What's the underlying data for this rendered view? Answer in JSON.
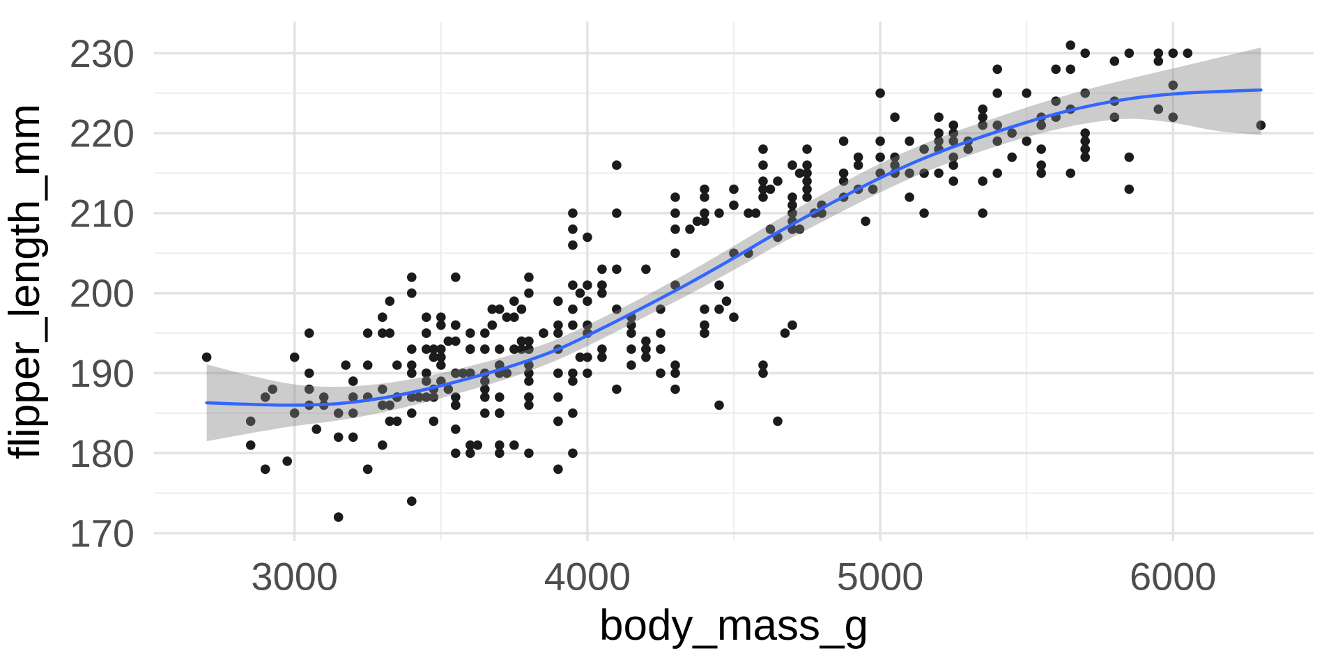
{
  "chart_data": {
    "type": "scatter",
    "title": "",
    "xlabel": "body_mass_g",
    "ylabel": "flipper_length_mm",
    "xlim": [
      2520,
      6480
    ],
    "ylim": [
      169.05,
      233.95
    ],
    "x_major_ticks": [
      3000,
      4000,
      5000,
      6000
    ],
    "x_minor_ticks": [
      3500,
      4500,
      5500
    ],
    "y_major_ticks": [
      170,
      180,
      190,
      200,
      210,
      220,
      230
    ],
    "y_minor_ticks": [
      175,
      185,
      195,
      205,
      215,
      225
    ],
    "grid": true,
    "legend": false,
    "colors": {
      "point": "#1B1B1B",
      "smooth_line": "#3366FF",
      "ribbon_fill": "#808080",
      "ribbon_alpha": 0.4,
      "grid_major": "#E3E3E3",
      "grid_minor": "#EDEDED",
      "tick_label": "#4D4D4D",
      "axis_title": "#000000",
      "background": "#FFFFFF"
    },
    "points_format": "[body_mass_g, flipper_length_mm]",
    "points": [
      [
        3750,
        181
      ],
      [
        3800,
        186
      ],
      [
        3250,
        195
      ],
      [
        3450,
        193
      ],
      [
        3650,
        190
      ],
      [
        3625,
        181
      ],
      [
        4675,
        195
      ],
      [
        3475,
        193
      ],
      [
        4250,
        190
      ],
      [
        3300,
        186
      ],
      [
        3700,
        180
      ],
      [
        3200,
        182
      ],
      [
        3800,
        191
      ],
      [
        4400,
        198
      ],
      [
        3700,
        185
      ],
      [
        3450,
        195
      ],
      [
        4500,
        197
      ],
      [
        3325,
        184
      ],
      [
        4200,
        194
      ],
      [
        3400,
        174
      ],
      [
        3600,
        180
      ],
      [
        3800,
        189
      ],
      [
        3950,
        185
      ],
      [
        3800,
        180
      ],
      [
        3800,
        187
      ],
      [
        3550,
        183
      ],
      [
        3200,
        187
      ],
      [
        3150,
        172
      ],
      [
        3950,
        180
      ],
      [
        3250,
        178
      ],
      [
        3900,
        178
      ],
      [
        3300,
        188
      ],
      [
        3900,
        184
      ],
      [
        3325,
        195
      ],
      [
        4150,
        196
      ],
      [
        3950,
        190
      ],
      [
        3550,
        180
      ],
      [
        3300,
        181
      ],
      [
        4650,
        184
      ],
      [
        3150,
        182
      ],
      [
        3900,
        195
      ],
      [
        3100,
        186
      ],
      [
        4400,
        196
      ],
      [
        3000,
        185
      ],
      [
        4600,
        190
      ],
      [
        3075,
        183
      ],
      [
        2975,
        179
      ],
      [
        3450,
        190
      ],
      [
        4150,
        191
      ],
      [
        3500,
        192
      ],
      [
        4300,
        205
      ],
      [
        3450,
        187
      ],
      [
        4050,
        193
      ],
      [
        2900,
        187
      ],
      [
        3700,
        191
      ],
      [
        3550,
        186
      ],
      [
        4450,
        186
      ],
      [
        3550,
        190
      ],
      [
        4300,
        188
      ],
      [
        3150,
        185
      ],
      [
        4050,
        200
      ],
      [
        3200,
        189
      ],
      [
        4700,
        196
      ],
      [
        3800,
        187
      ],
      [
        4200,
        193
      ],
      [
        3350,
        191
      ],
      [
        3550,
        194
      ],
      [
        3800,
        190
      ],
      [
        3500,
        189
      ],
      [
        3950,
        189
      ],
      [
        3600,
        190
      ],
      [
        3550,
        202
      ],
      [
        3050,
        190
      ],
      [
        4450,
        198
      ],
      [
        3600,
        190
      ],
      [
        3900,
        190
      ],
      [
        3550,
        196
      ],
      [
        4150,
        197
      ],
      [
        3700,
        190
      ],
      [
        4250,
        195
      ],
      [
        3700,
        191
      ],
      [
        3900,
        184
      ],
      [
        3550,
        187
      ],
      [
        4000,
        195
      ],
      [
        3200,
        189
      ],
      [
        4600,
        191
      ],
      [
        4200,
        193
      ],
      [
        4475,
        199
      ],
      [
        3425,
        187
      ],
      [
        3900,
        190
      ],
      [
        3175,
        191
      ],
      [
        3975,
        200
      ],
      [
        3400,
        185
      ],
      [
        4250,
        193
      ],
      [
        3400,
        193
      ],
      [
        3475,
        187
      ],
      [
        3050,
        188
      ],
      [
        3725,
        190
      ],
      [
        3000,
        192
      ],
      [
        3650,
        185
      ],
      [
        4250,
        190
      ],
      [
        3475,
        184
      ],
      [
        3450,
        195
      ],
      [
        3750,
        193
      ],
      [
        3700,
        187
      ],
      [
        4000,
        201
      ],
      [
        3050,
        186
      ],
      [
        4000,
        199
      ],
      [
        3750,
        199
      ],
      [
        4400,
        195
      ],
      [
        3550,
        186
      ],
      [
        4400,
        196
      ],
      [
        3100,
        187
      ],
      [
        3500,
        197
      ],
      [
        3500,
        193
      ],
      [
        4300,
        191
      ],
      [
        3700,
        190
      ],
      [
        4050,
        192
      ],
      [
        3475,
        188
      ],
      [
        3975,
        192
      ],
      [
        3400,
        190
      ],
      [
        4250,
        198
      ],
      [
        3400,
        187
      ],
      [
        3900,
        187
      ],
      [
        3650,
        188
      ],
      [
        3550,
        190
      ],
      [
        4000,
        192
      ],
      [
        3200,
        185
      ],
      [
        4300,
        190
      ],
      [
        3350,
        184
      ],
      [
        4100,
        188
      ],
      [
        3600,
        193
      ],
      [
        3900,
        193
      ],
      [
        3850,
        195
      ],
      [
        4775,
        210
      ],
      [
        3050,
        195
      ],
      [
        3450,
        189
      ],
      [
        3950,
        196
      ],
      [
        3250,
        187
      ],
      [
        4150,
        193
      ],
      [
        3700,
        193
      ],
      [
        4000,
        190
      ],
      [
        3500,
        191
      ],
      [
        4100,
        198
      ],
      [
        3325,
        186
      ],
      [
        4200,
        192
      ],
      [
        3800,
        194
      ],
      [
        2850,
        181
      ],
      [
        2850,
        184
      ],
      [
        3475,
        192
      ],
      [
        2925,
        188
      ],
      [
        3500,
        192
      ],
      [
        3900,
        196
      ],
      [
        3650,
        193
      ],
      [
        3525,
        188
      ],
      [
        3725,
        197
      ],
      [
        3950,
        198
      ],
      [
        3250,
        178
      ],
      [
        3750,
        197
      ],
      [
        4150,
        195
      ],
      [
        3700,
        198
      ],
      [
        3800,
        193
      ],
      [
        3775,
        194
      ],
      [
        3700,
        185
      ],
      [
        4050,
        201
      ],
      [
        3575,
        190
      ],
      [
        4050,
        201
      ],
      [
        3300,
        197
      ],
      [
        3700,
        181
      ],
      [
        3450,
        190
      ],
      [
        4400,
        195
      ],
      [
        3600,
        181
      ],
      [
        3400,
        191
      ],
      [
        2900,
        178
      ],
      [
        3800,
        193
      ],
      [
        3300,
        195
      ],
      [
        4150,
        197
      ],
      [
        3400,
        200
      ],
      [
        3800,
        200
      ],
      [
        3700,
        191
      ],
      [
        4550,
        205
      ],
      [
        3200,
        187
      ],
      [
        4300,
        201
      ],
      [
        3350,
        187
      ],
      [
        4100,
        203
      ],
      [
        3600,
        195
      ],
      [
        3900,
        199
      ],
      [
        3850,
        195
      ],
      [
        4800,
        210
      ],
      [
        2700,
        192
      ],
      [
        4500,
        205
      ],
      [
        3950,
        210
      ],
      [
        3650,
        187
      ],
      [
        3550,
        196
      ],
      [
        3500,
        196
      ],
      [
        3675,
        196
      ],
      [
        4450,
        201
      ],
      [
        3400,
        190
      ],
      [
        4300,
        212
      ],
      [
        3250,
        187
      ],
      [
        3675,
        198
      ],
      [
        3325,
        199
      ],
      [
        3950,
        201
      ],
      [
        3600,
        193
      ],
      [
        4050,
        203
      ],
      [
        3350,
        187
      ],
      [
        3450,
        197
      ],
      [
        3250,
        191
      ],
      [
        4000,
        196
      ],
      [
        3800,
        202
      ],
      [
        3525,
        194
      ],
      [
        3950,
        206
      ],
      [
        3650,
        189
      ],
      [
        3650,
        195
      ],
      [
        4000,
        207
      ],
      [
        3400,
        202
      ],
      [
        3775,
        193
      ],
      [
        4100,
        210
      ],
      [
        3775,
        198
      ],
      [
        4500,
        211
      ],
      [
        5700,
        230
      ],
      [
        4450,
        210
      ],
      [
        5700,
        218
      ],
      [
        5400,
        215
      ],
      [
        4550,
        210
      ],
      [
        4800,
        211
      ],
      [
        5200,
        219
      ],
      [
        4400,
        209
      ],
      [
        5150,
        215
      ],
      [
        4650,
        214
      ],
      [
        5550,
        216
      ],
      [
        5250,
        214
      ],
      [
        4975,
        213
      ],
      [
        5350,
        210
      ],
      [
        5700,
        217
      ],
      [
        4575,
        210
      ],
      [
        6300,
        221
      ],
      [
        4375,
        209
      ],
      [
        5350,
        222
      ],
      [
        5700,
        218
      ],
      [
        4925,
        216
      ],
      [
        4400,
        213
      ],
      [
        5050,
        215
      ],
      [
        5100,
        215
      ],
      [
        5650,
        215
      ],
      [
        4600,
        216
      ],
      [
        5550,
        215
      ],
      [
        4700,
        210
      ],
      [
        5250,
        220
      ],
      [
        5550,
        222
      ],
      [
        4700,
        209
      ],
      [
        4650,
        207
      ],
      [
        5850,
        230
      ],
      [
        5200,
        220
      ],
      [
        5700,
        220
      ],
      [
        4925,
        213
      ],
      [
        4875,
        219
      ],
      [
        4625,
        208
      ],
      [
        4725,
        208
      ],
      [
        5400,
        228
      ],
      [
        4750,
        218
      ],
      [
        5200,
        218
      ],
      [
        4600,
        212
      ],
      [
        6000,
        230
      ],
      [
        5300,
        218
      ],
      [
        5650,
        228
      ],
      [
        4700,
        212
      ],
      [
        5800,
        224
      ],
      [
        4600,
        214
      ],
      [
        6000,
        226
      ],
      [
        4700,
        216
      ],
      [
        5800,
        222
      ],
      [
        4200,
        203
      ],
      [
        5400,
        225
      ],
      [
        5250,
        219
      ],
      [
        5600,
        228
      ],
      [
        4700,
        208
      ],
      [
        5350,
        221
      ],
      [
        5700,
        219
      ],
      [
        4750,
        216
      ],
      [
        5550,
        218
      ],
      [
        4750,
        215
      ],
      [
        5000,
        215
      ],
      [
        5050,
        222
      ],
      [
        5100,
        212
      ],
      [
        5650,
        231
      ],
      [
        4600,
        213
      ],
      [
        5550,
        221
      ],
      [
        5250,
        221
      ],
      [
        4700,
        211
      ],
      [
        5600,
        224
      ],
      [
        4750,
        212
      ],
      [
        5500,
        219
      ],
      [
        5000,
        225
      ],
      [
        5050,
        217
      ],
      [
        5150,
        210
      ],
      [
        5400,
        221
      ],
      [
        4950,
        209
      ],
      [
        5250,
        216
      ],
      [
        4350,
        208
      ],
      [
        5350,
        214
      ],
      [
        3950,
        208
      ],
      [
        5700,
        225
      ],
      [
        4300,
        210
      ],
      [
        5000,
        219
      ],
      [
        4400,
        210
      ],
      [
        5050,
        216
      ],
      [
        5000,
        217
      ],
      [
        5100,
        219
      ],
      [
        4100,
        216
      ],
      [
        5650,
        223
      ],
      [
        5200,
        215
      ],
      [
        4925,
        217
      ],
      [
        4875,
        212
      ],
      [
        4750,
        214
      ],
      [
        5200,
        222
      ],
      [
        5400,
        219
      ],
      [
        4300,
        208
      ],
      [
        5150,
        218
      ],
      [
        4400,
        212
      ],
      [
        5250,
        217
      ],
      [
        4500,
        213
      ],
      [
        5500,
        225
      ],
      [
        4875,
        215
      ],
      [
        5950,
        230
      ],
      [
        4625,
        213
      ],
      [
        5450,
        217
      ],
      [
        4725,
        215
      ],
      [
        5350,
        223
      ],
      [
        4750,
        213
      ],
      [
        5600,
        222
      ],
      [
        4600,
        218
      ],
      [
        5300,
        219
      ],
      [
        4875,
        214
      ],
      [
        6050,
        230
      ],
      [
        5950,
        229
      ],
      [
        5800,
        229
      ],
      [
        5950,
        223
      ],
      [
        6000,
        222
      ],
      [
        5850,
        217
      ],
      [
        5850,
        213
      ],
      [
        5450,
        220
      ]
    ],
    "smooth": {
      "name": "loess-fit",
      "x": [
        2700,
        2850,
        3000,
        3150,
        3300,
        3450,
        3600,
        3750,
        3900,
        4050,
        4200,
        4350,
        4500,
        4650,
        4800,
        4950,
        5100,
        5250,
        5400,
        5550,
        5700,
        5850,
        6000,
        6150,
        6300
      ],
      "y": [
        186.3,
        186.1,
        186.0,
        186.2,
        186.9,
        188.0,
        189.4,
        191.0,
        193.0,
        195.6,
        198.4,
        201.3,
        204.4,
        207.6,
        210.6,
        213.5,
        216.1,
        218.3,
        220.2,
        221.9,
        223.3,
        224.3,
        224.9,
        225.2,
        225.4
      ],
      "upper": [
        191.1,
        189.7,
        188.6,
        188.3,
        188.7,
        189.6,
        190.9,
        192.4,
        194.3,
        196.9,
        199.7,
        202.7,
        205.9,
        209.2,
        212.3,
        215.3,
        217.9,
        220.1,
        222.0,
        223.8,
        225.4,
        226.8,
        228.1,
        229.4,
        230.7
      ],
      "lower": [
        181.5,
        182.5,
        183.4,
        184.1,
        185.1,
        186.4,
        187.9,
        189.6,
        191.7,
        194.3,
        197.1,
        199.9,
        202.9,
        206.0,
        208.9,
        211.7,
        214.3,
        216.5,
        218.4,
        220.0,
        221.2,
        221.8,
        221.3,
        220.3,
        219.8
      ]
    }
  }
}
